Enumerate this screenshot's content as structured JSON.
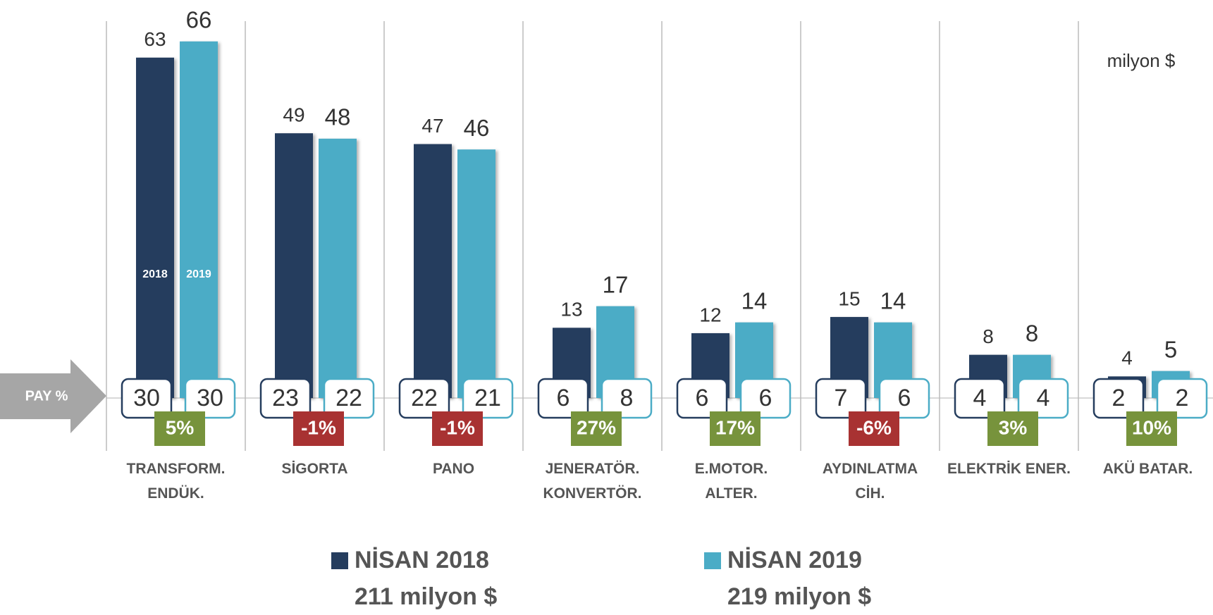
{
  "chart_data": {
    "type": "bar",
    "unit_label": "milyon $",
    "share_label": "PAY %",
    "categories": [
      "TRANSFORM.\nENDÜK.",
      "SİGORTA",
      "PANO",
      "JENERATÖR.\nKONVERTÖR.",
      "E.MOTOR.\nALTER.",
      "AYDINLATMA\nCİH.",
      "ELEKTRİK ENER.",
      "AKÜ BATAR."
    ],
    "series": [
      {
        "name": "NİSAN 2018",
        "short_name": "2018",
        "total": "211 milyon $",
        "color": "#253d5e",
        "values": [
          63,
          49,
          47,
          13,
          12,
          15,
          8,
          4
        ],
        "shares": [
          30,
          23,
          22,
          6,
          6,
          7,
          4,
          2
        ]
      },
      {
        "name": "NİSAN 2019",
        "short_name": "2019",
        "total": "219 milyon $",
        "color": "#4bacc6",
        "values": [
          66,
          48,
          46,
          17,
          14,
          14,
          8,
          5
        ],
        "shares": [
          30,
          22,
          21,
          8,
          6,
          6,
          4,
          2
        ]
      }
    ],
    "change": {
      "values": [
        5,
        -1,
        -1,
        27,
        17,
        -6,
        3,
        10
      ],
      "value_labels": [
        "5%",
        "-1%",
        "-1%",
        "27%",
        "17%",
        "-6%",
        "3%",
        "10%"
      ],
      "positive_color": "#77933c",
      "negative_color": "#a83232"
    }
  }
}
